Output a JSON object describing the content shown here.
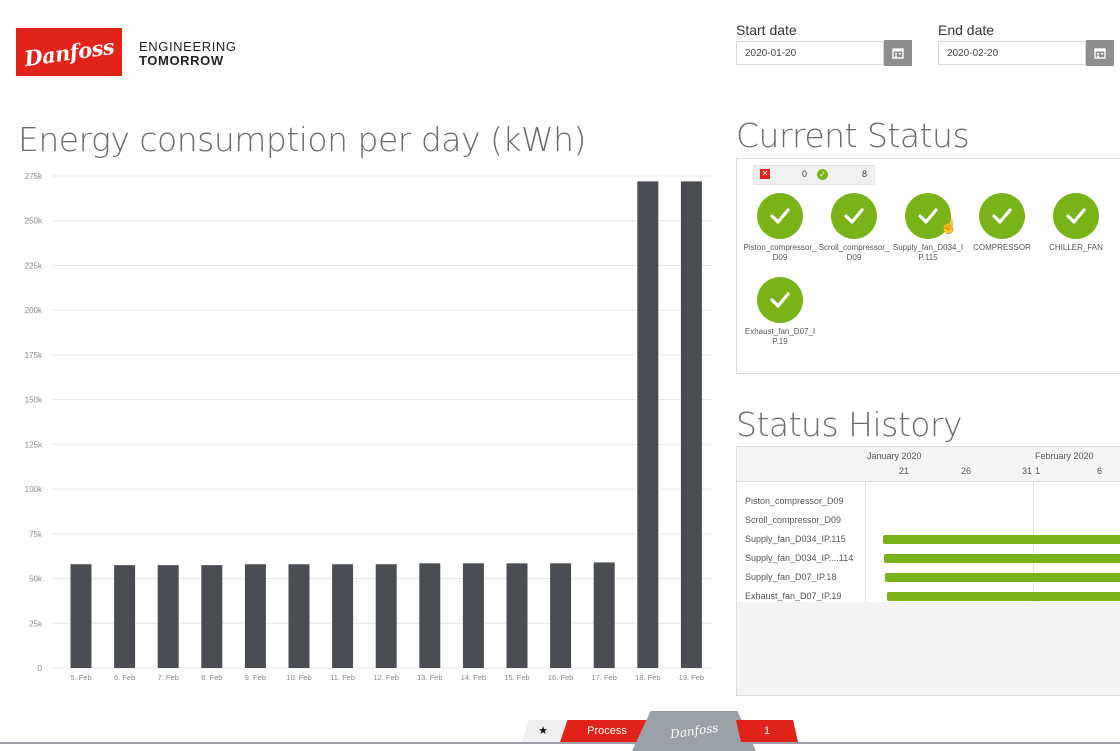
{
  "brand": {
    "logo_text": "Danfoss",
    "tagline_line1": "ENGINEERING",
    "tagline_line2": "TOMORROW"
  },
  "filters": {
    "start_label": "Start date",
    "start_value": "2020-01-20",
    "end_label": "End date",
    "end_value": "2020-02-20",
    "calendar_icon": "calendar-icon"
  },
  "energy": {
    "title": "Energy consumption per day (kWh)"
  },
  "chart_data": {
    "type": "bar",
    "title": "Energy consumption per day (kWh)",
    "categories": [
      "5. Feb",
      "6. Feb",
      "7. Feb",
      "8. Feb",
      "9. Feb",
      "10. Feb",
      "11. Feb",
      "12. Feb",
      "13. Feb",
      "14. Feb",
      "15. Feb",
      "16. Feb",
      "17. Feb",
      "18. Feb",
      "19. Feb"
    ],
    "values": [
      58000,
      57500,
      57500,
      57500,
      58000,
      58000,
      58000,
      58000,
      58500,
      58500,
      58500,
      58500,
      59000,
      272000,
      272000
    ],
    "yticks": [
      "0",
      "25k",
      "50k",
      "75k",
      "100k",
      "125k",
      "150k",
      "175k",
      "200k",
      "225k",
      "250k",
      "275k"
    ],
    "ylim": [
      0,
      275000
    ],
    "bar_color": "#4a4e52",
    "grid": true
  },
  "current_status": {
    "title": "Current Status",
    "error_count": "0",
    "ok_count": "8",
    "devices": [
      {
        "name": "Piston_compressor_D09"
      },
      {
        "name": "Scroll_compressor_D09"
      },
      {
        "name": "Supply_fan_D034_IP.115"
      },
      {
        "name": "COMPRESSOR"
      },
      {
        "name": "CHILLER_FAN"
      },
      {
        "name": "Exhaust_fan_D07_IP.19"
      }
    ],
    "ok_color": "#7ab317",
    "error_color": "#e2231a"
  },
  "status_history": {
    "title": "Status History",
    "months": [
      "January 2020",
      "February 2020"
    ],
    "days": [
      "21",
      "26",
      "31",
      "1",
      "6"
    ],
    "rows": [
      {
        "label": "Piston_compressor_D09",
        "ok_fraction": 0
      },
      {
        "label": "Scroll_compressor_D09",
        "ok_fraction": 0
      },
      {
        "label": "Supply_fan_D034_IP.115",
        "ok_fraction": 1
      },
      {
        "label": "Supply_fan_D034_IP....114",
        "ok_fraction": 1
      },
      {
        "label": "Supply_fan_D07_IP.18",
        "ok_fraction": 1
      },
      {
        "label": "Exhaust_fan_D07_IP.19",
        "ok_fraction": 1
      }
    ]
  },
  "bottom_nav": {
    "star": "★",
    "process": "Process",
    "center_logo": "Danfoss",
    "page": "1"
  }
}
